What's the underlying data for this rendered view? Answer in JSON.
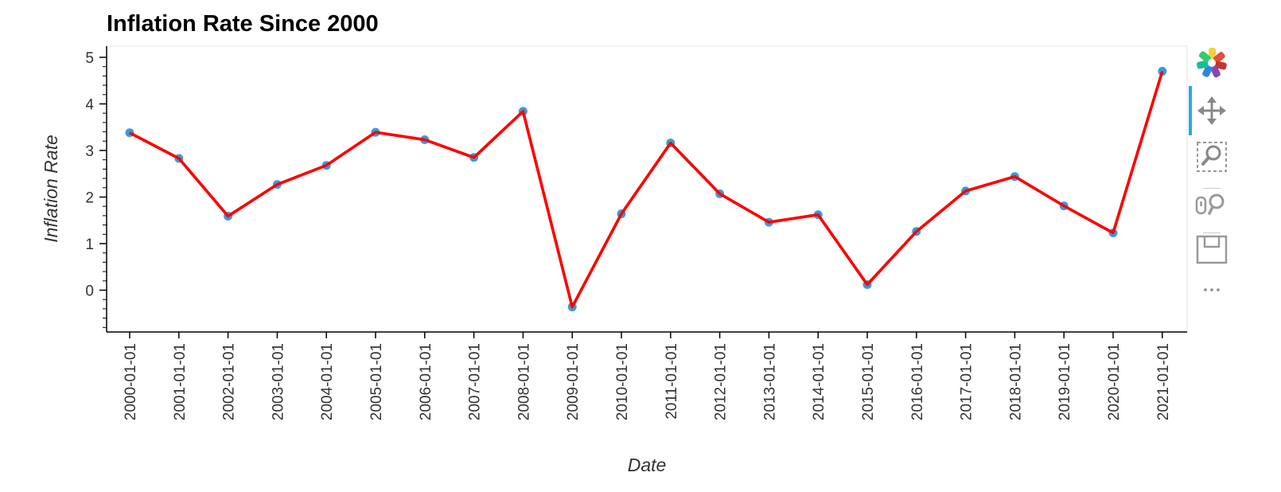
{
  "chart_data": {
    "type": "line",
    "title": "Inflation Rate Since 2000",
    "xlabel": "Date",
    "ylabel": "Inflation Rate",
    "categories": [
      "2000-01-01",
      "2001-01-01",
      "2002-01-01",
      "2003-01-01",
      "2004-01-01",
      "2005-01-01",
      "2006-01-01",
      "2007-01-01",
      "2008-01-01",
      "2009-01-01",
      "2010-01-01",
      "2011-01-01",
      "2012-01-01",
      "2013-01-01",
      "2014-01-01",
      "2015-01-01",
      "2016-01-01",
      "2017-01-01",
      "2018-01-01",
      "2019-01-01",
      "2020-01-01",
      "2021-01-01"
    ],
    "series": [
      {
        "values": [
          3.38,
          2.83,
          1.59,
          2.27,
          2.68,
          3.39,
          3.23,
          2.85,
          3.84,
          -0.36,
          1.64,
          3.16,
          2.07,
          1.46,
          1.62,
          0.12,
          1.26,
          2.13,
          2.44,
          1.81,
          1.23,
          4.7
        ],
        "line_color": "#ff0000",
        "marker_color": "#3a9bd9"
      }
    ],
    "yticks": [
      0,
      1,
      2,
      3,
      4,
      5
    ],
    "ylim": [
      -0.85,
      5.2
    ],
    "grid": false,
    "legend": "none"
  },
  "toolbar": {
    "tools": [
      {
        "name": "bokeh-logo-icon",
        "interactable": true
      },
      {
        "name": "pan-tool-icon",
        "interactable": true,
        "active": true
      },
      {
        "name": "box-zoom-tool-icon",
        "interactable": true
      },
      {
        "name": "wheel-zoom-tool-icon",
        "interactable": true
      },
      {
        "name": "save-tool-icon",
        "interactable": true
      },
      {
        "name": "more-tools-icon",
        "interactable": true
      }
    ],
    "accent_color": "#26aae1"
  }
}
